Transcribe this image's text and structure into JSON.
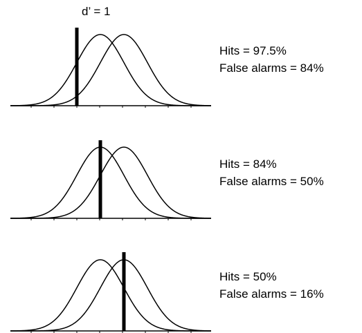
{
  "title": "d’ = 1",
  "d_prime": 1,
  "panels": [
    {
      "criterion_z": -1,
      "hits_label": "Hits = 97.5%",
      "false_alarms_label": "False alarms = 84%"
    },
    {
      "criterion_z": 0,
      "hits_label": "Hits = 84%",
      "false_alarms_label": "False alarms =  50%"
    },
    {
      "criterion_z": 1,
      "hits_label": "Hits = 50%",
      "false_alarms_label": "False alarms =  16%"
    }
  ],
  "colors": {
    "ink": "#000000",
    "background": "#ffffff"
  }
}
